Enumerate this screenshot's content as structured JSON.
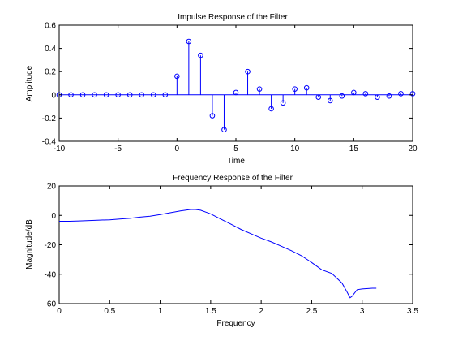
{
  "chart_data": [
    {
      "type": "stem",
      "title": "Impulse Response of the Filter",
      "xlabel": "Time",
      "ylabel": "Amplitude",
      "xlim": [
        -10,
        20
      ],
      "ylim": [
        -0.4,
        0.6
      ],
      "xticks": [
        "-10",
        "-5",
        "0",
        "5",
        "10",
        "15",
        "20"
      ],
      "yticks": [
        "-0.4",
        "-0.2",
        "0",
        "0.2",
        "0.4",
        "0.6"
      ],
      "series": [
        {
          "x": [
            -10,
            -9,
            -8,
            -7,
            -6,
            -5,
            -4,
            -3,
            -2,
            -1,
            0,
            1,
            2,
            3,
            4,
            5,
            6,
            7,
            8,
            9,
            10,
            11,
            12,
            13,
            14,
            15,
            16,
            17,
            18,
            19,
            20
          ],
          "y": [
            0,
            0,
            0,
            0,
            0,
            0,
            0,
            0,
            0,
            0,
            0.16,
            0.46,
            0.34,
            -0.18,
            -0.3,
            0.02,
            0.2,
            0.05,
            -0.12,
            -0.07,
            0.05,
            0.06,
            -0.02,
            -0.05,
            -0.01,
            0.02,
            0.01,
            -0.02,
            -0.01,
            0.01,
            0.01
          ]
        }
      ],
      "color": "#0000ff"
    },
    {
      "type": "line",
      "title": "Frequency Response of the Filter",
      "xlabel": "Frequency",
      "ylabel": "Magnitude/dB",
      "xlim": [
        0,
        3.5
      ],
      "ylim": [
        -60,
        20
      ],
      "xticks": [
        "0",
        "0.5",
        "1",
        "1.5",
        "2",
        "2.5",
        "3",
        "3.5"
      ],
      "yticks": [
        "-60",
        "-40",
        "-20",
        "0",
        "20"
      ],
      "series": [
        {
          "x": [
            0,
            0.1,
            0.2,
            0.3,
            0.4,
            0.5,
            0.6,
            0.7,
            0.8,
            0.9,
            1.0,
            1.1,
            1.2,
            1.3,
            1.35,
            1.4,
            1.5,
            1.6,
            1.7,
            1.8,
            1.9,
            2.0,
            2.1,
            2.2,
            2.3,
            2.4,
            2.5,
            2.6,
            2.7,
            2.8,
            2.85,
            2.88,
            2.9,
            2.95,
            3.0,
            3.1,
            3.14
          ],
          "y": [
            -4,
            -4,
            -3.8,
            -3.5,
            -3.2,
            -3,
            -2.5,
            -2,
            -1.2,
            -0.5,
            0.5,
            1.8,
            3,
            4,
            4,
            3.5,
            1,
            -2.5,
            -6,
            -9.5,
            -12.5,
            -15.5,
            -18,
            -21,
            -24,
            -27.5,
            -32,
            -37,
            -39.5,
            -46,
            -52,
            -56,
            -55,
            -50.5,
            -50,
            -49.5,
            -49.5
          ]
        }
      ],
      "color": "#0000ff"
    }
  ]
}
